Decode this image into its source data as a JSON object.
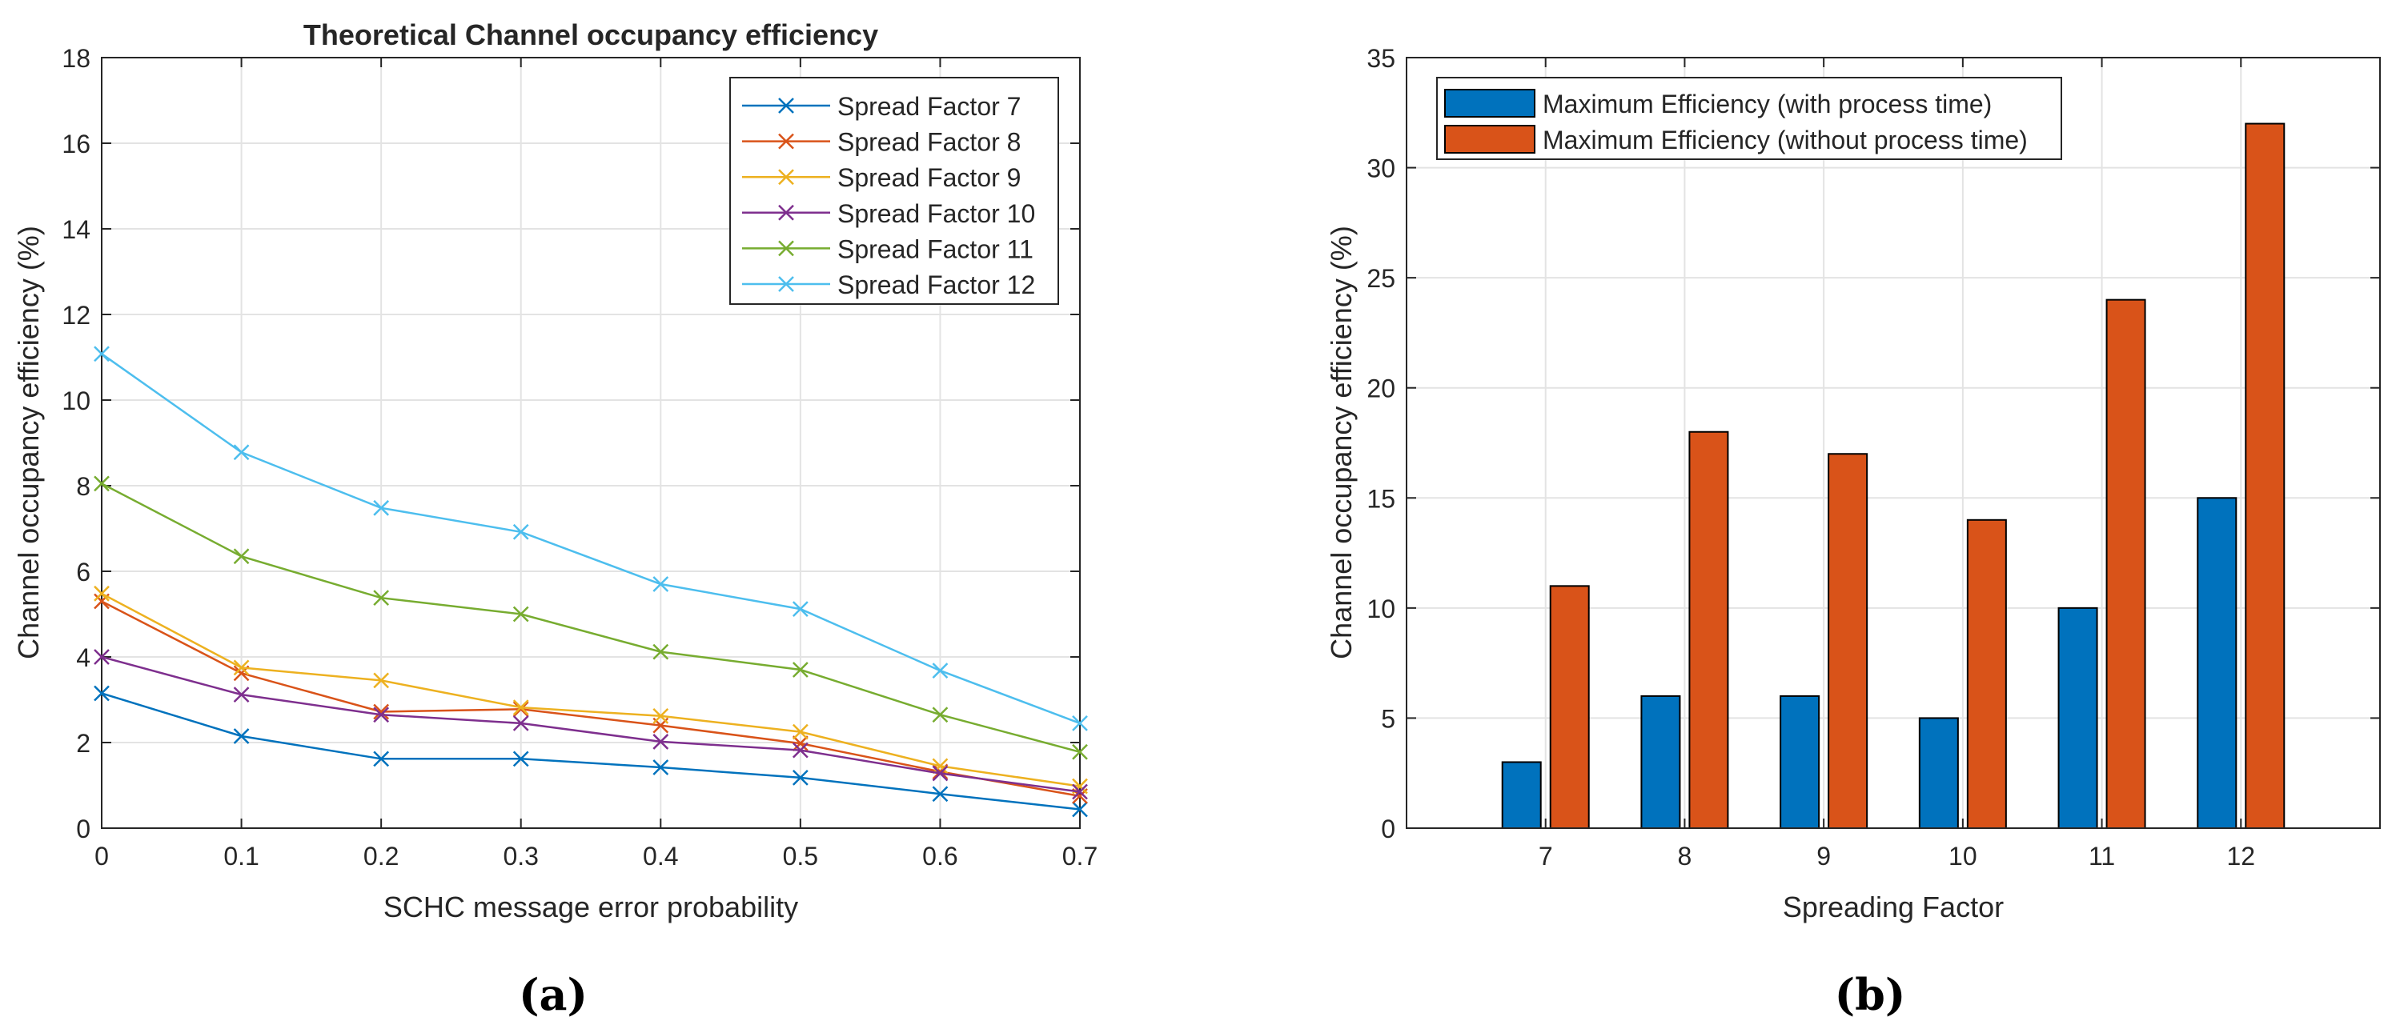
{
  "chart_data": [
    {
      "type": "line",
      "panel_label": "(a)",
      "title": "Theoretical Channel occupancy efficiency",
      "xlabel": "SCHC message error probability",
      "ylabel": "Channel occupancy efficiency (%)",
      "xlim": [
        0,
        0.7
      ],
      "ylim": [
        0,
        18
      ],
      "xticks": [
        "0",
        "0.1",
        "0.2",
        "0.3",
        "0.4",
        "0.5",
        "0.6",
        "0.7"
      ],
      "yticks": [
        "0",
        "2",
        "4",
        "6",
        "8",
        "10",
        "12",
        "14",
        "16",
        "18"
      ],
      "grid": true,
      "legend_position": "top-right",
      "x": [
        0,
        0.1,
        0.2,
        0.3,
        0.4,
        0.5,
        0.6,
        0.7
      ],
      "series": [
        {
          "name": "Spread Factor  7",
          "color": "#0072BD",
          "values": [
            3.15,
            2.15,
            1.62,
            1.62,
            1.42,
            1.18,
            0.8,
            0.44
          ]
        },
        {
          "name": "Spread Factor  8",
          "color": "#D95319",
          "values": [
            5.3,
            3.62,
            2.72,
            2.78,
            2.4,
            1.98,
            1.32,
            0.75
          ]
        },
        {
          "name": "Spread Factor  9",
          "color": "#EDB120",
          "values": [
            5.48,
            3.75,
            3.45,
            2.82,
            2.62,
            2.25,
            1.45,
            0.98
          ]
        },
        {
          "name": "Spread Factor 10",
          "color": "#7E2F8E",
          "values": [
            4.0,
            3.12,
            2.65,
            2.45,
            2.02,
            1.82,
            1.28,
            0.85
          ]
        },
        {
          "name": "Spread Factor 11",
          "color": "#77AC30",
          "values": [
            8.05,
            6.35,
            5.38,
            5.0,
            4.12,
            3.7,
            2.65,
            1.78
          ]
        },
        {
          "name": "Spread Factor 12",
          "color": "#4DBEEE",
          "values": [
            11.08,
            8.78,
            7.48,
            6.92,
            5.7,
            5.12,
            3.68,
            2.45
          ]
        }
      ]
    },
    {
      "type": "bar",
      "panel_label": "(b)",
      "xlabel": "Spreading Factor",
      "ylabel": "Channel occupancy efficiency (%)",
      "ylim": [
        0,
        35
      ],
      "yticks": [
        "0",
        "5",
        "10",
        "15",
        "20",
        "25",
        "30",
        "35"
      ],
      "grid": true,
      "legend_position": "top-left",
      "categories": [
        "7",
        "8",
        "9",
        "10",
        "11",
        "12"
      ],
      "series": [
        {
          "name": "Maximum Efficiency (with process time)",
          "color": "#0072BD",
          "values": [
            3,
            6,
            6,
            5,
            10,
            15
          ]
        },
        {
          "name": "Maximum Efficiency (without process time)",
          "color": "#D95319",
          "values": [
            11,
            18,
            17,
            14,
            24,
            32
          ]
        }
      ]
    }
  ]
}
